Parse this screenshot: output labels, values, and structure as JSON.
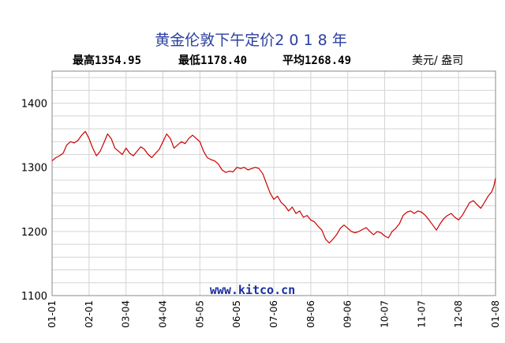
{
  "chart_data": {
    "type": "line",
    "title": "黄金伦敦下午定价2 0 1 8 年",
    "stats": {
      "high_label": "最高1354.95",
      "low_label": "最低1178.40",
      "avg_label": "平均1268.49"
    },
    "unit_label": "美元/ 盎司",
    "source": "www.kitco.cn",
    "ylim": [
      1100,
      1450
    ],
    "yticks": [
      1100,
      1200,
      1300,
      1400
    ],
    "ytick_labels": [
      "1100",
      "1200",
      "1300",
      "1400"
    ],
    "xtick_labels": [
      "01-01",
      "02-01",
      "03-04",
      "04-04",
      "05-05",
      "06-05",
      "07-06",
      "08-06",
      "09-06",
      "10-07",
      "11-07",
      "12-08",
      "01-08"
    ],
    "x_domain": [
      0,
      12
    ],
    "grid": true,
    "series": [
      {
        "color": "#cc0000",
        "points": [
          [
            0.0,
            1310
          ],
          [
            0.1,
            1315
          ],
          [
            0.2,
            1318
          ],
          [
            0.3,
            1322
          ],
          [
            0.4,
            1335
          ],
          [
            0.5,
            1340
          ],
          [
            0.6,
            1338
          ],
          [
            0.7,
            1342
          ],
          [
            0.8,
            1350
          ],
          [
            0.9,
            1356
          ],
          [
            1.0,
            1345
          ],
          [
            1.1,
            1330
          ],
          [
            1.2,
            1318
          ],
          [
            1.3,
            1325
          ],
          [
            1.4,
            1338
          ],
          [
            1.5,
            1352
          ],
          [
            1.6,
            1345
          ],
          [
            1.7,
            1330
          ],
          [
            1.8,
            1325
          ],
          [
            1.9,
            1320
          ],
          [
            2.0,
            1330
          ],
          [
            2.1,
            1322
          ],
          [
            2.2,
            1318
          ],
          [
            2.3,
            1325
          ],
          [
            2.4,
            1332
          ],
          [
            2.5,
            1328
          ],
          [
            2.6,
            1320
          ],
          [
            2.7,
            1315
          ],
          [
            2.8,
            1322
          ],
          [
            2.9,
            1328
          ],
          [
            3.0,
            1340
          ],
          [
            3.1,
            1352
          ],
          [
            3.2,
            1345
          ],
          [
            3.3,
            1330
          ],
          [
            3.4,
            1335
          ],
          [
            3.5,
            1340
          ],
          [
            3.6,
            1337
          ],
          [
            3.7,
            1345
          ],
          [
            3.8,
            1350
          ],
          [
            3.9,
            1345
          ],
          [
            4.0,
            1340
          ],
          [
            4.1,
            1325
          ],
          [
            4.2,
            1315
          ],
          [
            4.3,
            1312
          ],
          [
            4.4,
            1310
          ],
          [
            4.5,
            1305
          ],
          [
            4.6,
            1296
          ],
          [
            4.7,
            1292
          ],
          [
            4.8,
            1294
          ],
          [
            4.9,
            1293
          ],
          [
            5.0,
            1300
          ],
          [
            5.1,
            1298
          ],
          [
            5.2,
            1300
          ],
          [
            5.3,
            1296
          ],
          [
            5.4,
            1298
          ],
          [
            5.5,
            1300
          ],
          [
            5.6,
            1298
          ],
          [
            5.7,
            1290
          ],
          [
            5.8,
            1275
          ],
          [
            5.9,
            1260
          ],
          [
            6.0,
            1250
          ],
          [
            6.1,
            1255
          ],
          [
            6.2,
            1245
          ],
          [
            6.3,
            1240
          ],
          [
            6.4,
            1232
          ],
          [
            6.5,
            1238
          ],
          [
            6.6,
            1228
          ],
          [
            6.7,
            1232
          ],
          [
            6.8,
            1222
          ],
          [
            6.9,
            1225
          ],
          [
            7.0,
            1218
          ],
          [
            7.1,
            1215
          ],
          [
            7.2,
            1208
          ],
          [
            7.3,
            1202
          ],
          [
            7.4,
            1188
          ],
          [
            7.5,
            1182
          ],
          [
            7.6,
            1188
          ],
          [
            7.7,
            1195
          ],
          [
            7.8,
            1205
          ],
          [
            7.9,
            1210
          ],
          [
            8.0,
            1205
          ],
          [
            8.1,
            1200
          ],
          [
            8.2,
            1198
          ],
          [
            8.3,
            1200
          ],
          [
            8.4,
            1203
          ],
          [
            8.5,
            1206
          ],
          [
            8.6,
            1200
          ],
          [
            8.7,
            1195
          ],
          [
            8.8,
            1200
          ],
          [
            8.9,
            1198
          ],
          [
            9.0,
            1193
          ],
          [
            9.1,
            1190
          ],
          [
            9.2,
            1200
          ],
          [
            9.3,
            1205
          ],
          [
            9.4,
            1212
          ],
          [
            9.5,
            1225
          ],
          [
            9.6,
            1230
          ],
          [
            9.7,
            1232
          ],
          [
            9.8,
            1228
          ],
          [
            9.9,
            1232
          ],
          [
            10.0,
            1230
          ],
          [
            10.1,
            1225
          ],
          [
            10.2,
            1218
          ],
          [
            10.3,
            1210
          ],
          [
            10.4,
            1202
          ],
          [
            10.5,
            1212
          ],
          [
            10.6,
            1220
          ],
          [
            10.7,
            1225
          ],
          [
            10.8,
            1228
          ],
          [
            10.9,
            1222
          ],
          [
            11.0,
            1218
          ],
          [
            11.1,
            1225
          ],
          [
            11.2,
            1235
          ],
          [
            11.3,
            1245
          ],
          [
            11.4,
            1248
          ],
          [
            11.5,
            1242
          ],
          [
            11.6,
            1236
          ],
          [
            11.7,
            1245
          ],
          [
            11.8,
            1255
          ],
          [
            11.9,
            1262
          ],
          [
            11.95,
            1270
          ],
          [
            12.0,
            1283
          ]
        ]
      }
    ]
  }
}
